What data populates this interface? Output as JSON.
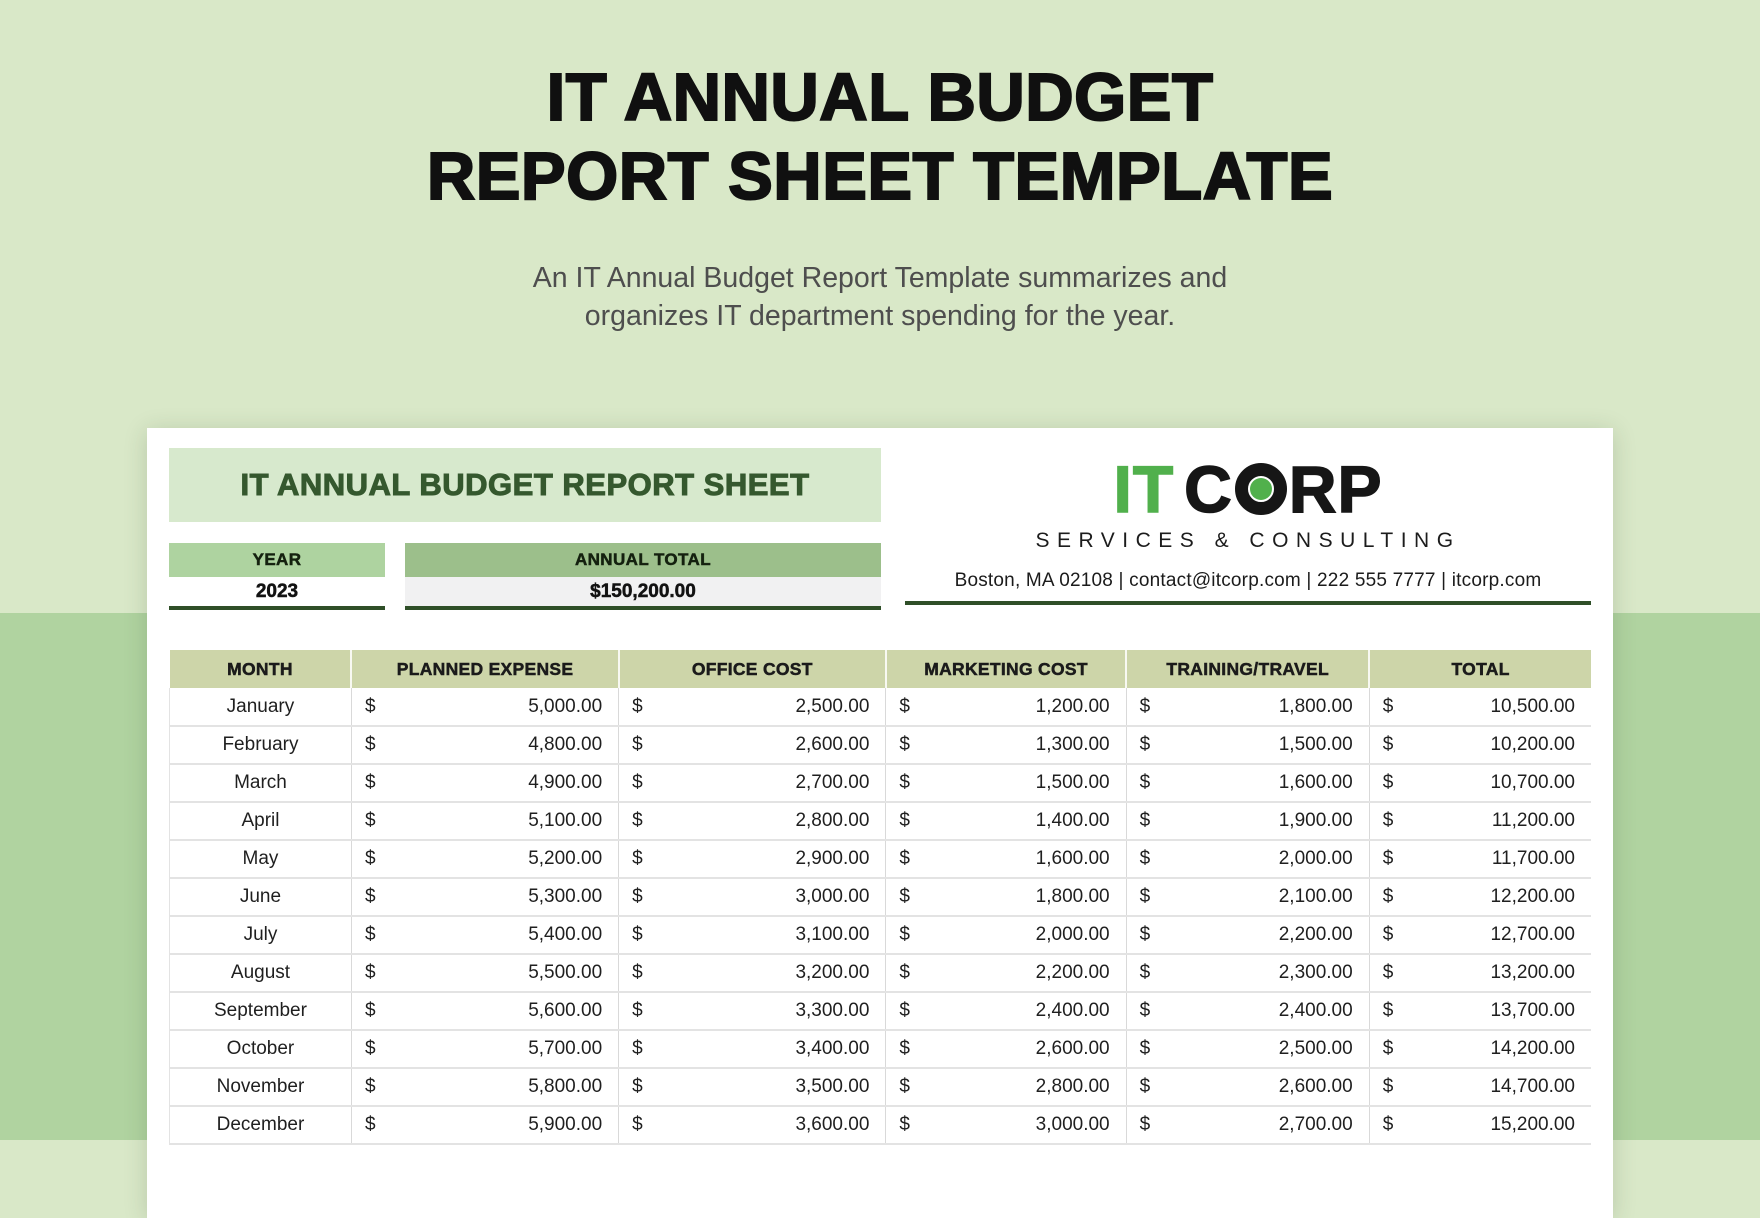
{
  "hero": {
    "title_line1": "IT ANNUAL BUDGET",
    "title_line2": "REPORT SHEET TEMPLATE",
    "subtitle_line1": "An IT Annual Budget Report Template summarizes and",
    "subtitle_line2": "organizes IT department spending for the year."
  },
  "card": {
    "sheet_title": "IT ANNUAL BUDGET REPORT SHEET",
    "year": {
      "label": "YEAR",
      "value": "2023"
    },
    "annual_total": {
      "label": "ANNUAL TOTAL",
      "value": "$150,200.00"
    },
    "logo": {
      "name_green": "IT",
      "name_pre_o": "C",
      "name_post_o": "RP",
      "tagline": "SERVICES & CONSULTING",
      "contact": "Boston, MA 02108  |  contact@itcorp.com   |   222 555 7777   |   itcorp.com"
    }
  },
  "table": {
    "columns": [
      "MONTH",
      "PLANNED EXPENSE",
      "OFFICE COST",
      "MARKETING COST",
      "TRAINING/TRAVEL",
      "TOTAL"
    ],
    "column_widths_pct": [
      12.8,
      18.8,
      18.8,
      16.9,
      17.1,
      15.6
    ],
    "currency_symbol": "$",
    "rows": [
      [
        "January",
        "5,000.00",
        "2,500.00",
        "1,200.00",
        "1,800.00",
        "10,500.00"
      ],
      [
        "February",
        "4,800.00",
        "2,600.00",
        "1,300.00",
        "1,500.00",
        "10,200.00"
      ],
      [
        "March",
        "4,900.00",
        "2,700.00",
        "1,500.00",
        "1,600.00",
        "10,700.00"
      ],
      [
        "April",
        "5,100.00",
        "2,800.00",
        "1,400.00",
        "1,900.00",
        "11,200.00"
      ],
      [
        "May",
        "5,200.00",
        "2,900.00",
        "1,600.00",
        "2,000.00",
        "11,700.00"
      ],
      [
        "June",
        "5,300.00",
        "3,000.00",
        "1,800.00",
        "2,100.00",
        "12,200.00"
      ],
      [
        "July",
        "5,400.00",
        "3,100.00",
        "2,000.00",
        "2,200.00",
        "12,700.00"
      ],
      [
        "August",
        "5,500.00",
        "3,200.00",
        "2,200.00",
        "2,300.00",
        "13,200.00"
      ],
      [
        "September",
        "5,600.00",
        "3,300.00",
        "2,400.00",
        "2,400.00",
        "13,700.00"
      ],
      [
        "October",
        "5,700.00",
        "3,400.00",
        "2,600.00",
        "2,500.00",
        "14,200.00"
      ],
      [
        "November",
        "5,800.00",
        "3,500.00",
        "2,800.00",
        "2,600.00",
        "14,700.00"
      ],
      [
        "December",
        "5,900.00",
        "3,600.00",
        "3,000.00",
        "2,700.00",
        "15,200.00"
      ]
    ]
  },
  "colors": {
    "page_bg_top": "#d9e8c8",
    "page_bg_bottom": "#b0d3a0",
    "band_bg": "#d7e9cd",
    "band_text": "#35582e",
    "year_header_bg": "#aed3a0",
    "annual_header_bg": "#9cbf8b",
    "annual_value_bg": "#f1f1f2",
    "underline_green": "#2f4f28",
    "table_header_bg": "#cdd5a9",
    "logo_green": "#51b04c"
  }
}
